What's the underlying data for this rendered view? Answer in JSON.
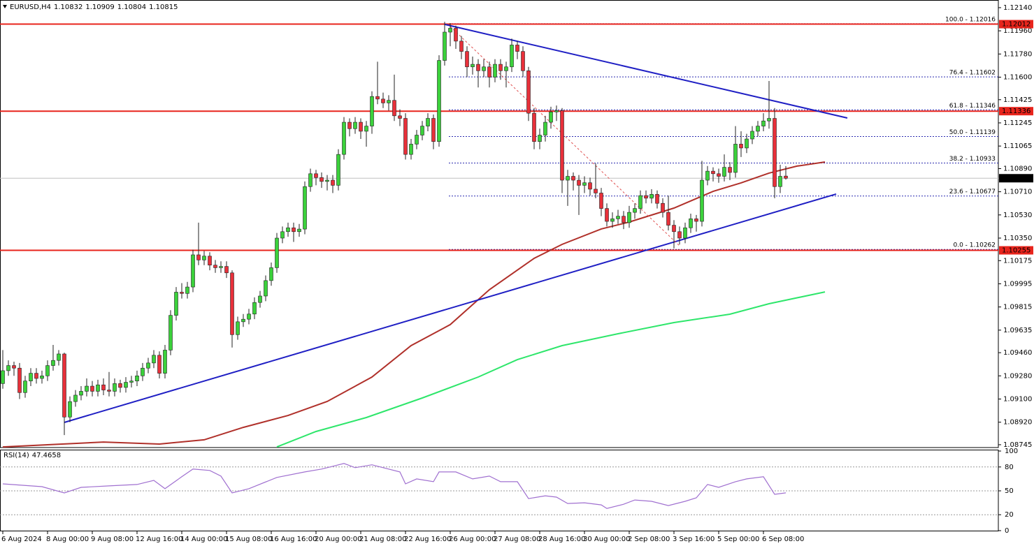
{
  "chart_data": {
    "type": "candlestick",
    "title": "EURUSD,H4",
    "categories": [
      "6 Aug 2024",
      null,
      null,
      null,
      null,
      null,
      null,
      null,
      "8 Aug 00:00",
      null,
      null,
      null,
      null,
      null,
      null,
      null,
      "9 Aug 08:00",
      null,
      null,
      null,
      null,
      null,
      null,
      null,
      "12 Aug 16:00",
      null,
      null,
      null,
      null,
      null,
      null,
      null,
      "14 Aug 00:00",
      null,
      null,
      null,
      null,
      null,
      null,
      null,
      "15 Aug 08:00",
      null,
      null,
      null,
      null,
      null,
      null,
      null,
      "16 Aug 16:00",
      null,
      null,
      null,
      null,
      null,
      null,
      null,
      "20 Aug 00:00",
      null,
      null,
      null,
      null,
      null,
      null,
      null,
      "21 Aug 08:00",
      null,
      null,
      null,
      null,
      null,
      null,
      null,
      "22 Aug 16:00",
      null,
      null,
      null,
      null,
      null,
      null,
      null,
      "26 Aug 00:00",
      null,
      null,
      null,
      null,
      null,
      null,
      null,
      "27 Aug 08:00",
      null,
      null,
      null,
      null,
      null,
      null,
      null,
      "28 Aug 16:00",
      null,
      null,
      null,
      null,
      null,
      null,
      null,
      "30 Aug 00:00",
      null,
      null,
      null,
      null,
      null,
      null,
      null,
      "2 Sep 08:00",
      null,
      null,
      null,
      null,
      null,
      null,
      null,
      "3 Sep 16:00",
      null,
      null,
      null,
      null,
      null,
      null,
      null,
      "5 Sep 00:00",
      null,
      null,
      null,
      null,
      null,
      null,
      null,
      "6 Sep 08:00",
      null,
      null,
      null,
      null
    ],
    "open": [
      1.0922,
      1.0932,
      1.0936,
      1.0934,
      1.0915,
      1.0924,
      1.093,
      1.0926,
      1.0928,
      1.0936,
      1.094,
      1.0945,
      1.0896,
      1.0908,
      1.0913,
      1.0916,
      1.092,
      1.0916,
      1.0921,
      1.0917,
      1.0916,
      1.0922,
      1.0919,
      1.0923,
      1.0924,
      1.0928,
      1.0934,
      1.0938,
      1.0944,
      1.093,
      1.0948,
      1.0975,
      1.0993,
      1.0992,
      1.0997,
      1.1022,
      1.1018,
      1.1021,
      1.1014,
      1.1012,
      1.1013,
      1.1008,
      1.096,
      1.097,
      1.0972,
      1.0976,
      1.0985,
      1.099,
      1.1002,
      1.1012,
      1.1035,
      1.104,
      1.1043,
      1.104,
      1.1042,
      1.1075,
      1.1085,
      1.1082,
      1.1079,
      1.108,
      1.1076,
      1.11,
      1.1125,
      1.112,
      1.1125,
      1.1118,
      1.1122,
      1.1145,
      1.1143,
      1.114,
      1.1142,
      1.113,
      1.1128,
      1.11,
      1.1108,
      1.1115,
      1.1122,
      1.1128,
      1.111,
      1.1173,
      1.1195,
      1.1198,
      1.1188,
      1.118,
      1.1168,
      1.117,
      1.1165,
      1.1168,
      1.116,
      1.117,
      1.1165,
      1.1168,
      1.1185,
      1.118,
      1.1165,
      1.1132,
      1.111,
      1.1115,
      1.1125,
      1.1133,
      1.1134,
      1.108,
      1.1083,
      1.108,
      1.1076,
      1.1078,
      1.1073,
      1.107,
      1.1058,
      1.1048,
      1.105,
      1.1052,
      1.1047,
      1.1055,
      1.1058,
      1.1068,
      1.1066,
      1.1069,
      1.1062,
      1.1055,
      1.1045,
      1.104,
      1.1035,
      1.1043,
      1.105,
      1.1048,
      1.108,
      1.1087,
      1.1085,
      1.1083,
      1.109,
      1.1086,
      1.1108,
      1.1105,
      1.1112,
      1.1118,
      1.1122,
      1.1126,
      1.1128,
      1.1075,
      1.10832
    ],
    "high": [
      1.0948,
      1.094,
      1.0939,
      1.0938,
      1.0928,
      1.0934,
      1.0934,
      1.0932,
      1.094,
      1.0952,
      1.0948,
      1.0946,
      1.0912,
      1.0917,
      1.092,
      1.0926,
      1.0924,
      1.0925,
      1.0926,
      1.0931,
      1.0926,
      1.0925,
      1.0927,
      1.0928,
      1.0932,
      1.0938,
      1.0942,
      1.0948,
      1.0947,
      1.0952,
      1.0979,
      1.0997,
      1.1,
      1.1001,
      1.1026,
      1.1047,
      1.1025,
      1.1024,
      1.1018,
      1.1017,
      1.1017,
      1.101,
      1.0974,
      1.0976,
      1.098,
      1.0989,
      1.0994,
      1.1006,
      1.1016,
      1.1039,
      1.1044,
      1.1047,
      1.1047,
      1.1046,
      1.1079,
      1.1089,
      1.1088,
      1.1086,
      1.1084,
      1.1084,
      1.1104,
      1.1129,
      1.1128,
      1.1129,
      1.1128,
      1.1126,
      1.1149,
      1.1172,
      1.1148,
      1.1146,
      1.1162,
      1.1135,
      1.1132,
      1.1112,
      1.1119,
      1.1126,
      1.1132,
      1.1131,
      1.1177,
      1.1203,
      1.1202,
      1.12,
      1.1192,
      1.1184,
      1.1176,
      1.1174,
      1.1174,
      1.1172,
      1.1174,
      1.1174,
      1.1172,
      1.119,
      1.1188,
      1.1184,
      1.1168,
      1.1136,
      1.112,
      1.113,
      1.1137,
      1.1138,
      1.1136,
      1.1088,
      1.1086,
      1.1084,
      1.1083,
      1.1082,
      1.1093,
      1.1074,
      1.1062,
      1.1055,
      1.1057,
      1.1056,
      1.106,
      1.1062,
      1.1072,
      1.1072,
      1.1073,
      1.1072,
      1.1066,
      1.1068,
      1.1049,
      1.1044,
      1.1047,
      1.1054,
      1.1053,
      1.1095,
      1.1091,
      1.109,
      1.1089,
      1.11,
      1.1094,
      1.1122,
      1.1118,
      1.1116,
      1.1122,
      1.1126,
      1.1132,
      1.1157,
      1.1136,
      1.1092,
      1.10909
    ],
    "low": [
      1.0918,
      1.0928,
      1.0928,
      1.091,
      1.0911,
      1.092,
      1.0922,
      1.0922,
      1.0924,
      1.0932,
      1.0936,
      1.0882,
      1.0892,
      1.0904,
      1.0909,
      1.0912,
      1.0912,
      1.0912,
      1.0913,
      1.0912,
      1.0912,
      1.0915,
      1.0915,
      1.0919,
      1.092,
      1.0924,
      1.093,
      1.0934,
      1.0926,
      1.0926,
      1.0944,
      1.0971,
      1.0988,
      1.0988,
      1.0993,
      1.1014,
      1.1014,
      1.101,
      1.1008,
      1.1008,
      1.1004,
      1.095,
      1.0956,
      1.0966,
      1.0968,
      1.0972,
      1.0981,
      1.0986,
      1.0998,
      1.1008,
      1.1031,
      1.1036,
      1.1032,
      1.1036,
      1.1038,
      1.1071,
      1.1076,
      1.1074,
      1.1072,
      1.107,
      1.1072,
      1.1096,
      1.1114,
      1.1116,
      1.1112,
      1.1106,
      1.1116,
      1.1139,
      1.1136,
      1.1134,
      1.1126,
      1.1122,
      1.1096,
      1.1096,
      1.1104,
      1.1111,
      1.1118,
      1.1104,
      1.1106,
      1.1169,
      1.1184,
      1.1182,
      1.1174,
      1.116,
      1.1162,
      1.1152,
      1.116,
      1.1152,
      1.1156,
      1.1158,
      1.1152,
      1.1164,
      1.1174,
      1.116,
      1.1126,
      1.1104,
      1.1104,
      1.111,
      1.112,
      1.1126,
      1.107,
      1.106,
      1.1072,
      1.1053,
      1.107,
      1.1068,
      1.1066,
      1.1052,
      1.1044,
      1.1043,
      1.1046,
      1.1042,
      1.1043,
      1.105,
      1.1054,
      1.1062,
      1.1062,
      1.1058,
      1.1051,
      1.1041,
      1.1027,
      1.103,
      1.1031,
      1.1039,
      1.104,
      1.1044,
      1.1076,
      1.1079,
      1.1078,
      1.1079,
      1.108,
      1.1082,
      1.1098,
      1.1101,
      1.1108,
      1.1114,
      1.1118,
      1.112,
      1.1066,
      1.107,
      1.10804
    ],
    "close": [
      1.0932,
      1.0936,
      1.0934,
      1.0915,
      1.0924,
      1.093,
      1.0926,
      1.0928,
      1.0936,
      1.094,
      1.0945,
      1.0896,
      1.0908,
      1.0913,
      1.0916,
      1.092,
      1.0916,
      1.0921,
      1.0917,
      1.0916,
      1.0922,
      1.0919,
      1.0923,
      1.0924,
      1.0928,
      1.0934,
      1.0938,
      1.0944,
      1.093,
      1.0948,
      1.0975,
      1.0993,
      1.0992,
      1.0997,
      1.1022,
      1.1018,
      1.1021,
      1.1014,
      1.1012,
      1.1013,
      1.1008,
      1.096,
      1.097,
      1.0972,
      1.0976,
      1.0985,
      1.099,
      1.1002,
      1.1012,
      1.1035,
      1.104,
      1.1043,
      1.104,
      1.1042,
      1.1075,
      1.1085,
      1.1082,
      1.1079,
      1.108,
      1.1076,
      1.11,
      1.1125,
      1.112,
      1.1125,
      1.1118,
      1.1122,
      1.1145,
      1.1143,
      1.114,
      1.1142,
      1.113,
      1.1128,
      1.11,
      1.1108,
      1.1115,
      1.1122,
      1.1128,
      1.111,
      1.1173,
      1.1195,
      1.1198,
      1.1188,
      1.118,
      1.1168,
      1.117,
      1.1165,
      1.1168,
      1.116,
      1.117,
      1.1165,
      1.1168,
      1.1185,
      1.118,
      1.1165,
      1.1132,
      1.111,
      1.1115,
      1.1125,
      1.1133,
      1.1134,
      1.108,
      1.1083,
      1.108,
      1.1076,
      1.1078,
      1.1073,
      1.107,
      1.1058,
      1.1048,
      1.105,
      1.1052,
      1.1047,
      1.1055,
      1.1058,
      1.1068,
      1.1066,
      1.1069,
      1.1062,
      1.1055,
      1.1045,
      1.104,
      1.1035,
      1.1043,
      1.105,
      1.1048,
      1.108,
      1.1087,
      1.1085,
      1.1083,
      1.109,
      1.1086,
      1.1108,
      1.1105,
      1.1112,
      1.1118,
      1.1122,
      1.1126,
      1.1128,
      1.1075,
      1.1083,
      1.10815
    ],
    "up_color": "#3bd13b",
    "down_color": "#e8303a",
    "ylim": [
      1.08723,
      1.12194
    ],
    "yticks": [
      {
        "value": 1.1214,
        "label": "1.12140"
      },
      {
        "value": 1.1196,
        "label": "1.11960"
      },
      {
        "value": 1.1178,
        "label": "1.11780"
      },
      {
        "value": 1.116,
        "label": "1.11600"
      },
      {
        "value": 1.11425,
        "label": "1.11425"
      },
      {
        "value": 1.11245,
        "label": "1.11245"
      },
      {
        "value": 1.11065,
        "label": "1.11065"
      },
      {
        "value": 1.1089,
        "label": "1.10890"
      },
      {
        "value": 1.1071,
        "label": "1.10710"
      },
      {
        "value": 1.1053,
        "label": "1.10530"
      },
      {
        "value": 1.1035,
        "label": "1.10350"
      },
      {
        "value": 1.10175,
        "label": "1.10175"
      },
      {
        "value": 1.09995,
        "label": "1.09995"
      },
      {
        "value": 1.09815,
        "label": "1.09815"
      },
      {
        "value": 1.09635,
        "label": "1.09635"
      },
      {
        "value": 1.0946,
        "label": "1.09460"
      },
      {
        "value": 1.0928,
        "label": "1.09280"
      },
      {
        "value": 1.091,
        "label": "1.09100"
      },
      {
        "value": 1.0892,
        "label": "1.08920"
      },
      {
        "value": 1.08745,
        "label": "1.08745"
      }
    ],
    "levels": {
      "color": "#e8241c",
      "values": [
        1.12012,
        1.11336,
        1.10255
      ]
    },
    "fib_color": "#2a2ab0",
    "fib_levels": [
      {
        "value": 1.12016,
        "label": "100.0 - 1.12016"
      },
      {
        "value": 1.11602,
        "label": "76.4 - 1.11602"
      },
      {
        "value": 1.11346,
        "label": "61.8 - 1.11346"
      },
      {
        "value": 1.11139,
        "label": "50.0 - 1.11139"
      },
      {
        "value": 1.10933,
        "label": "38.2 - 1.10933"
      },
      {
        "value": 1.10677,
        "label": "23.6 - 1.10677"
      },
      {
        "value": 1.10262,
        "label": "0.0 - 1.10262"
      }
    ],
    "overlays": [
      {
        "color": "#b0302a",
        "x": [
          0,
          18,
          28,
          36,
          43,
          51,
          58,
          66,
          73,
          80,
          87,
          95,
          100,
          107,
          112,
          120,
          127,
          132,
          137,
          142,
          147
        ],
        "values": [
          1.08728,
          1.08766,
          1.0875,
          1.08783,
          1.0888,
          1.08972,
          1.09081,
          1.09271,
          1.09515,
          1.09678,
          1.09949,
          1.10193,
          1.10301,
          1.10421,
          1.10475,
          1.10583,
          1.10713,
          1.10779,
          1.10855,
          1.10909,
          1.10941
        ]
      },
      {
        "color": "#2ee66b",
        "x": [
          49,
          56,
          65,
          75,
          85,
          92,
          100,
          110,
          120,
          130,
          137,
          147
        ],
        "values": [
          1.08728,
          1.08848,
          1.08956,
          1.09108,
          1.09271,
          1.09406,
          1.09515,
          1.09607,
          1.09694,
          1.09759,
          1.0984,
          1.09932
        ]
      }
    ],
    "trendlines": [
      {
        "color": "#1f1fc4",
        "dashed": false,
        "x": [
          79,
          151
        ],
        "values": [
          1.1201,
          1.11283
        ]
      },
      {
        "color": "#1f1fc4",
        "dashed": false,
        "x": [
          11,
          149
        ],
        "values": [
          1.08918,
          1.10692
        ]
      },
      {
        "color": "#e05050",
        "dashed": true,
        "x": [
          80,
          121
        ],
        "values": [
          1.11994,
          1.1029
        ]
      }
    ],
    "rsi": {
      "type": "line",
      "title": "RSI(14)",
      "color": "#a070d0",
      "x": [
        0,
        7,
        11,
        14,
        19,
        24,
        27,
        29,
        32,
        34,
        37,
        39,
        41,
        44,
        49,
        54,
        57,
        59,
        61,
        63,
        66,
        68,
        71,
        72,
        74,
        77,
        78,
        81,
        84,
        87,
        89,
        92,
        94,
        97,
        99,
        101,
        104,
        107,
        108,
        111,
        113,
        116,
        119,
        122,
        124,
        126,
        128,
        131,
        133,
        136,
        138,
        140
      ],
      "values": [
        58.8,
        55.3,
        47.4,
        54.4,
        56.2,
        58.0,
        63.2,
        52.7,
        67.7,
        77.4,
        75.6,
        68.5,
        47.4,
        52.7,
        66.8,
        73.8,
        77.4,
        80.9,
        84.4,
        79.1,
        82.7,
        79.1,
        73.8,
        58.8,
        65.0,
        61.5,
        73.8,
        73.8,
        65.0,
        68.5,
        61.5,
        61.5,
        40.3,
        43.8,
        42.1,
        34.1,
        35.0,
        32.4,
        27.9,
        33.2,
        38.5,
        36.8,
        31.5,
        36.8,
        41.2,
        58.0,
        54.4,
        61.5,
        65.0,
        67.7,
        45.6,
        47.4658
      ],
      "ylim": [
        0,
        100
      ],
      "yticks": [
        100,
        80,
        50,
        20,
        0
      ],
      "levels": [
        80,
        50,
        20
      ]
    }
  }
}
